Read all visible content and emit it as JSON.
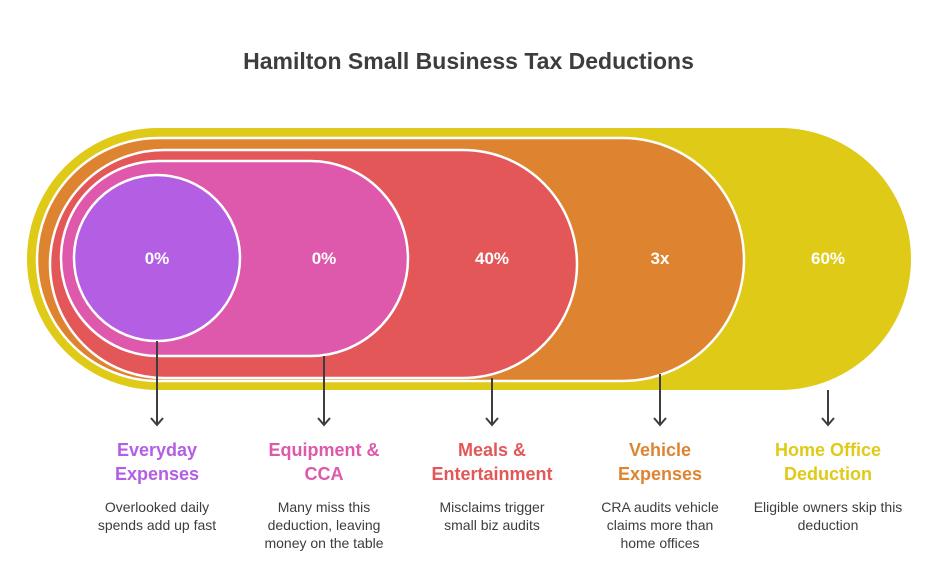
{
  "title": "Hamilton Small Business Tax Deductions",
  "items": [
    {
      "value": "0%",
      "label": "Everyday Expenses",
      "description": "Overlooked daily spends add up fast",
      "color": "#b35ee3"
    },
    {
      "value": "0%",
      "label": "Equipment & CCA",
      "description": "Many miss this deduction, leaving money on the table",
      "color": "#de59ab"
    },
    {
      "value": "40%",
      "label": "Meals & Entertainment",
      "description": "Misclaims trigger small biz audits",
      "color": "#e35758"
    },
    {
      "value": "3x",
      "label": "Vehicle Expenses",
      "description": "CRA audits vehicle claims more than home offices",
      "color": "#de8431"
    },
    {
      "value": "60%",
      "label": "Home Office Deduction",
      "description": "Eligible owners skip this deduction",
      "color": "#dfca18"
    }
  ]
}
